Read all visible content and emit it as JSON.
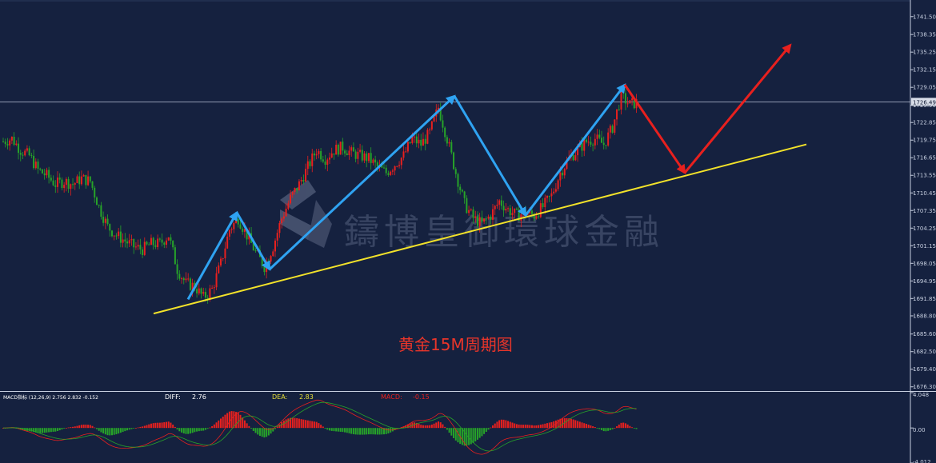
{
  "chart_data": [
    {
      "type": "candlestick",
      "caption": "黄金15M周期图",
      "watermark": "鑄博皇御環球金融",
      "y_ticks": [
        "1741.50",
        "1738.35",
        "1735.25",
        "1732.15",
        "1729.05",
        "1725.90",
        "1722.85",
        "1719.75",
        "1716.65",
        "1713.55",
        "1710.45",
        "1707.35",
        "1704.25",
        "1701.15",
        "1698.05",
        "1694.95",
        "1691.85",
        "1688.80",
        "1685.60",
        "1682.50",
        "1679.40",
        "1676.30"
      ],
      "y_tick_values": [
        1741.5,
        1738.35,
        1735.25,
        1732.15,
        1729.05,
        1725.9,
        1722.85,
        1719.75,
        1716.65,
        1713.55,
        1710.45,
        1707.35,
        1704.25,
        1701.15,
        1698.05,
        1694.95,
        1691.85,
        1688.8,
        1685.6,
        1682.5,
        1679.4,
        1676.3
      ],
      "ylim": [
        1675.7,
        1743.3
      ],
      "current_price_label": "1726.49",
      "current_price": 1726.49,
      "close_path": [
        [
          0,
          1719.5
        ],
        [
          4,
          1720.0
        ],
        [
          8,
          1718.0
        ],
        [
          12,
          1717.0
        ],
        [
          16,
          1714.5
        ],
        [
          20,
          1713.5
        ],
        [
          24,
          1712.0
        ],
        [
          28,
          1712.5
        ],
        [
          32,
          1712.0
        ],
        [
          36,
          1713.0
        ],
        [
          40,
          1712.5
        ],
        [
          44,
          1708.0
        ],
        [
          48,
          1704.5
        ],
        [
          52,
          1703.0
        ],
        [
          56,
          1702.0
        ],
        [
          60,
          1701.0
        ],
        [
          64,
          1700.5
        ],
        [
          68,
          1701.5
        ],
        [
          72,
          1701.5
        ],
        [
          76,
          1703.0
        ],
        [
          80,
          1697.0
        ],
        [
          84,
          1694.5
        ],
        [
          88,
          1694.0
        ],
        [
          92,
          1692.0
        ],
        [
          96,
          1693.5
        ],
        [
          100,
          1698.0
        ],
        [
          104,
          1704.0
        ],
        [
          108,
          1706.0
        ],
        [
          112,
          1703.0
        ],
        [
          116,
          1700.0
        ],
        [
          120,
          1697.5
        ],
        [
          124,
          1701.0
        ],
        [
          128,
          1706.0
        ],
        [
          132,
          1709.5
        ],
        [
          136,
          1712.0
        ],
        [
          140,
          1715.0
        ],
        [
          144,
          1718.0
        ],
        [
          148,
          1716.5
        ],
        [
          152,
          1718.0
        ],
        [
          156,
          1718.5
        ],
        [
          160,
          1717.5
        ],
        [
          164,
          1717.0
        ],
        [
          168,
          1716.5
        ],
        [
          172,
          1715.0
        ],
        [
          176,
          1714.0
        ],
        [
          180,
          1715.5
        ],
        [
          184,
          1717.0
        ],
        [
          188,
          1720.0
        ],
        [
          192,
          1719.0
        ],
        [
          196,
          1721.0
        ],
        [
          200,
          1725.5
        ],
        [
          204,
          1720.0
        ],
        [
          208,
          1714.0
        ],
        [
          212,
          1708.5
        ],
        [
          216,
          1706.0
        ],
        [
          220,
          1705.0
        ],
        [
          224,
          1706.5
        ],
        [
          228,
          1709.0
        ],
        [
          232,
          1707.5
        ],
        [
          236,
          1706.5
        ],
        [
          240,
          1707.0
        ],
        [
          244,
          1706.5
        ],
        [
          248,
          1708.0
        ],
        [
          252,
          1710.0
        ],
        [
          256,
          1714.0
        ],
        [
          260,
          1716.5
        ],
        [
          264,
          1718.0
        ],
        [
          268,
          1719.5
        ],
        [
          272,
          1720.0
        ],
        [
          276,
          1719.0
        ],
        [
          280,
          1722.0
        ],
        [
          284,
          1727.5
        ],
        [
          288,
          1726.0
        ],
        [
          292,
          1726.5
        ]
      ],
      "blue_path": [
        [
          1691.7,
          0
        ],
        [
          1707.0,
          0
        ],
        [
          1697.0,
          0
        ],
        [
          1727.5,
          0
        ],
        [
          1706.5,
          0
        ],
        [
          1729.5,
          0
        ]
      ],
      "red_path": [
        [
          1729.5,
          0
        ],
        [
          1714.0,
          0
        ],
        [
          1736.5,
          0
        ]
      ],
      "yellow_line": [
        [
          1689.2,
          0
        ],
        [
          1719.0,
          0
        ]
      ]
    },
    {
      "type": "bar",
      "indicator_label": "MACD指标 (12,26,9) 2.756 2.832 -0.152",
      "diff_label": "DIFF:",
      "diff_value": "2.76",
      "dea_label": "DEA:",
      "dea_value": "2.83",
      "macd_label": "MACD:",
      "macd_value": "-0.15",
      "y_ticks": [
        "4.048",
        "0.00",
        "-4.012"
      ],
      "ylim": [
        -4.012,
        4.048
      ]
    }
  ]
}
